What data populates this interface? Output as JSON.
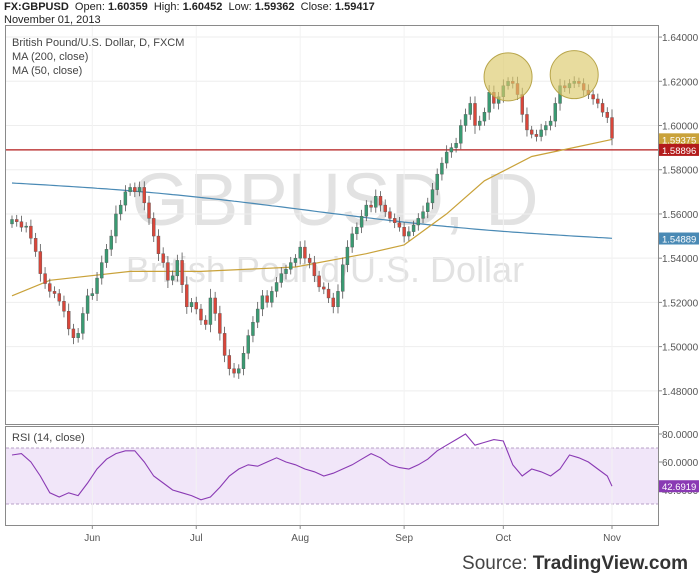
{
  "header": {
    "symbol": "FX:GBPUSD",
    "open_label": "Open:",
    "open": "1.60359",
    "high_label": "High:",
    "high": "1.60452",
    "low_label": "Low:",
    "low": "1.59362",
    "close_label": "Close:",
    "close": "1.59417",
    "date": "November 01, 2013"
  },
  "legend": {
    "title": "British Pound/U.S. Dollar, D, FXCM",
    "ma200": "MA (200, close)",
    "ma50": "MA (50, close)"
  },
  "watermark": {
    "symbol": "GBPUSD, D",
    "name": "British Pound/U.S. Dollar"
  },
  "source": {
    "prefix": "Source:",
    "brand": "TradingView.com"
  },
  "colors": {
    "up": "#3a9a72",
    "down": "#d9463a",
    "ma200": "#4a8ab5",
    "ma50": "#c9a23a",
    "rsi": "#8a3ab4",
    "rsi_band": "#f1e6f9",
    "support": "#b31b1b",
    "circle": "#dcc96a"
  },
  "chart_data": [
    {
      "type": "candlestick",
      "title": "British Pound/U.S. Dollar, D, FXCM",
      "ylim": [
        1.465,
        1.645
      ],
      "y_ticks": [
        "1.64000",
        "1.62000",
        "1.60000",
        "1.58000",
        "1.56000",
        "1.54000",
        "1.52000",
        "1.50000",
        "1.48000"
      ],
      "x_ticks": [
        "Jun",
        "Jul",
        "Aug",
        "Sep",
        "Oct",
        "Nov"
      ],
      "x_tick_index": [
        17,
        39,
        61,
        83,
        104,
        127
      ],
      "bar_count": 128,
      "closes": [
        1.5575,
        1.5565,
        1.554,
        1.5545,
        1.549,
        1.543,
        1.533,
        1.5285,
        1.525,
        1.524,
        1.5205,
        1.516,
        1.508,
        1.504,
        1.506,
        1.515,
        1.523,
        1.524,
        1.531,
        1.538,
        1.544,
        1.55,
        1.56,
        1.564,
        1.57,
        1.572,
        1.57,
        1.572,
        1.565,
        1.558,
        1.55,
        1.542,
        1.538,
        1.53,
        1.532,
        1.539,
        1.528,
        1.518,
        1.52,
        1.517,
        1.512,
        1.51,
        1.522,
        1.515,
        1.506,
        1.496,
        1.49,
        1.488,
        1.49,
        1.497,
        1.505,
        1.511,
        1.517,
        1.523,
        1.52,
        1.525,
        1.529,
        1.533,
        1.535,
        1.538,
        1.54,
        1.545,
        1.54,
        1.538,
        1.532,
        1.527,
        1.526,
        1.522,
        1.518,
        1.525,
        1.537,
        1.545,
        1.551,
        1.554,
        1.559,
        1.564,
        1.563,
        1.568,
        1.564,
        1.561,
        1.558,
        1.556,
        1.554,
        1.55,
        1.552,
        1.555,
        1.558,
        1.561,
        1.565,
        1.571,
        1.578,
        1.583,
        1.588,
        1.59,
        1.592,
        1.6,
        1.605,
        1.61,
        1.6,
        1.602,
        1.606,
        1.615,
        1.61,
        1.613,
        1.618,
        1.62,
        1.619,
        1.614,
        1.605,
        1.598,
        1.596,
        1.595,
        1.598,
        1.6,
        1.602,
        1.61,
        1.618,
        1.617,
        1.619,
        1.62,
        1.619,
        1.616,
        1.614,
        1.612,
        1.61,
        1.606,
        1.6036,
        1.5942
      ],
      "ma200": {
        "start": 1.574,
        "end": 1.5489
      },
      "ma50_points": [
        [
          0,
          1.523
        ],
        [
          8,
          1.53
        ],
        [
          25,
          1.534
        ],
        [
          40,
          1.534
        ],
        [
          60,
          1.536
        ],
        [
          75,
          1.542
        ],
        [
          83,
          1.546
        ],
        [
          92,
          1.56
        ],
        [
          100,
          1.575
        ],
        [
          110,
          1.586
        ],
        [
          120,
          1.5905
        ],
        [
          127,
          1.5937
        ]
      ],
      "price_labels": [
        "1.59375",
        "1.58896",
        "1.54889"
      ],
      "support_level": 1.58896,
      "highlights": [
        {
          "index": 105,
          "price": 1.622
        },
        {
          "index": 119,
          "price": 1.623
        }
      ]
    },
    {
      "type": "line",
      "title": "RSI (14, close)",
      "ylim": [
        15,
        85
      ],
      "y_ticks": [
        "80.0000",
        "60.0000",
        "40.0000"
      ],
      "band": [
        30,
        70
      ],
      "last_label": "42.6919",
      "points": [
        [
          0,
          65
        ],
        [
          2,
          66
        ],
        [
          4,
          60
        ],
        [
          6,
          50
        ],
        [
          8,
          38
        ],
        [
          10,
          35
        ],
        [
          12,
          38
        ],
        [
          14,
          36
        ],
        [
          16,
          45
        ],
        [
          18,
          55
        ],
        [
          20,
          62
        ],
        [
          22,
          66
        ],
        [
          24,
          68
        ],
        [
          26,
          68
        ],
        [
          28,
          60
        ],
        [
          30,
          50
        ],
        [
          32,
          45
        ],
        [
          34,
          40
        ],
        [
          36,
          38
        ],
        [
          38,
          36
        ],
        [
          40,
          33
        ],
        [
          42,
          35
        ],
        [
          44,
          42
        ],
        [
          46,
          50
        ],
        [
          48,
          55
        ],
        [
          50,
          58
        ],
        [
          52,
          57
        ],
        [
          54,
          60
        ],
        [
          56,
          63
        ],
        [
          58,
          60
        ],
        [
          60,
          58
        ],
        [
          62,
          55
        ],
        [
          64,
          53
        ],
        [
          66,
          50
        ],
        [
          68,
          52
        ],
        [
          70,
          55
        ],
        [
          72,
          58
        ],
        [
          74,
          62
        ],
        [
          76,
          66
        ],
        [
          78,
          63
        ],
        [
          80,
          58
        ],
        [
          82,
          56
        ],
        [
          84,
          55
        ],
        [
          86,
          58
        ],
        [
          88,
          62
        ],
        [
          90,
          68
        ],
        [
          92,
          72
        ],
        [
          94,
          76
        ],
        [
          96,
          80
        ],
        [
          98,
          72
        ],
        [
          100,
          74
        ],
        [
          102,
          76
        ],
        [
          104,
          75
        ],
        [
          106,
          58
        ],
        [
          108,
          50
        ],
        [
          110,
          55
        ],
        [
          112,
          53
        ],
        [
          114,
          50
        ],
        [
          116,
          55
        ],
        [
          118,
          65
        ],
        [
          120,
          63
        ],
        [
          122,
          60
        ],
        [
          124,
          55
        ],
        [
          126,
          50
        ],
        [
          127,
          42.69
        ]
      ]
    }
  ]
}
